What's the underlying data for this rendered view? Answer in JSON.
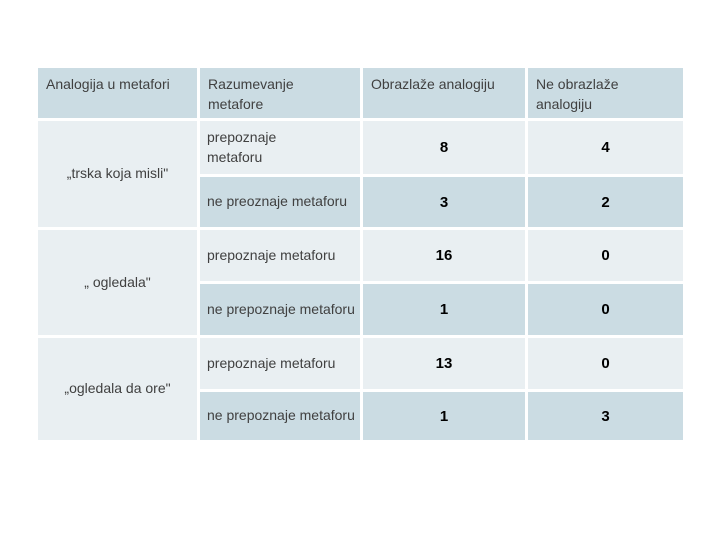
{
  "slide": {
    "background": "#ffffff"
  },
  "table": {
    "headers": {
      "analogy": "Analogija u metafori",
      "understanding": "Razumevanje\nmetafore",
      "explains": "Obrazlaže analogiju",
      "not_explains": "Ne obrazlaže\nanalogiju"
    },
    "groups": [
      {
        "label": "„trska koja misli\"",
        "rows": [
          {
            "understanding": "prepoznaje \nmetaforu",
            "explains": "8",
            "not_explains": "4"
          },
          {
            "understanding": "ne preoznaje metaforu",
            "explains": "3",
            "not_explains": "2"
          }
        ]
      },
      {
        "label": "„ ogledala\"",
        "rows": [
          {
            "understanding": "prepoznaje metaforu",
            "explains": "16",
            "not_explains": "0"
          },
          {
            "understanding": "ne prepoznaje metaforu",
            "explains": "1",
            "not_explains": "0"
          }
        ]
      },
      {
        "label": "„ogledala da ore\"",
        "rows": [
          {
            "understanding": "prepoznaje metaforu",
            "explains": "13",
            "not_explains": "0"
          },
          {
            "understanding": "ne prepoznaje metaforu",
            "explains": "1",
            "not_explains": "3"
          }
        ]
      }
    ]
  },
  "colors": {
    "header_bg": "#cbdce3",
    "band_dark": "#cbdce3",
    "band_light": "#e9eff2",
    "label_text": "#404040",
    "number_text": "#000000",
    "page_bg": "#ffffff"
  },
  "chart_data": {
    "type": "table",
    "columns": [
      "Analogija u metafori",
      "Razumevanje metafore",
      "Obrazlaže analogiju",
      "Ne obrazlaže analogiju"
    ],
    "rows": [
      [
        "„trska koja misli\"",
        "prepoznaje metaforu",
        8,
        4
      ],
      [
        "„trska koja misli\"",
        "ne preoznaje metaforu",
        3,
        2
      ],
      [
        "„ ogledala\"",
        "prepoznaje metaforu",
        16,
        0
      ],
      [
        "„ ogledala\"",
        "ne prepoznaje metaforu",
        1,
        0
      ],
      [
        "„ogledala da ore\"",
        "prepoznaje metaforu",
        13,
        0
      ],
      [
        "„ogledala da ore\"",
        "ne prepoznaje metaforu",
        1,
        3
      ]
    ],
    "title": "",
    "legend_position": "none",
    "grid": false
  }
}
